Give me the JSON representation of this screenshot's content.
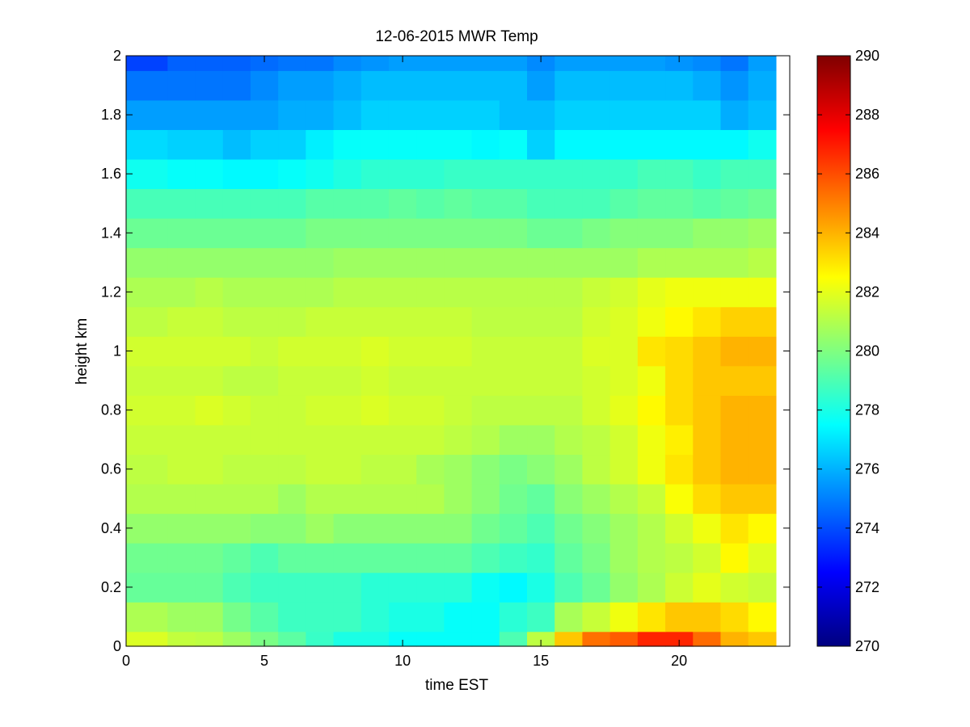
{
  "chart_data": {
    "type": "heatmap",
    "title": "12-06-2015 MWR Temp",
    "xlabel": "time EST",
    "ylabel": "height km",
    "xlim": [
      0,
      24
    ],
    "ylim": [
      0,
      2
    ],
    "xticks": [
      0,
      5,
      10,
      15,
      20
    ],
    "yticks": [
      0,
      0.2,
      0.4,
      0.6,
      0.8,
      1,
      1.2,
      1.4,
      1.6,
      1.8,
      2
    ],
    "x_edges": [
      0,
      1.5,
      2.5,
      3.5,
      4.5,
      5.5,
      6.5,
      7.5,
      8.5,
      9.5,
      10.5,
      11.5,
      12.5,
      13.5,
      14.5,
      15.5,
      16.5,
      17.5,
      18.5,
      19.5,
      20.5,
      21.5,
      22.5,
      23.5
    ],
    "y_edges": [
      0,
      0.05,
      0.15,
      0.25,
      0.35,
      0.45,
      0.55,
      0.65,
      0.75,
      0.85,
      0.95,
      1.05,
      1.15,
      1.25,
      1.35,
      1.45,
      1.55,
      1.65,
      1.75,
      1.85,
      1.95,
      2.0
    ],
    "colorbar": {
      "min": 270,
      "max": 290,
      "ticks": [
        270,
        272,
        274,
        276,
        278,
        280,
        282,
        284,
        286,
        288,
        290
      ],
      "colormap": "jet"
    },
    "values": [
      [
        281.8,
        281.3,
        281.2,
        280.6,
        279.9,
        279.3,
        278.6,
        278.0,
        278.0,
        277.6,
        277.6,
        277.6,
        277.6,
        279.0,
        281.2,
        283.6,
        285.3,
        285.7,
        286.8,
        286.8,
        285.4,
        284.0,
        283.6
      ],
      [
        280.9,
        280.6,
        280.6,
        279.8,
        279.2,
        278.7,
        278.7,
        278.7,
        278.3,
        278.0,
        278.0,
        277.6,
        277.6,
        278.3,
        278.7,
        280.8,
        281.4,
        282.2,
        283.0,
        283.6,
        283.6,
        283.2,
        282.6
      ],
      [
        279.5,
        279.5,
        279.5,
        279.0,
        278.7,
        278.7,
        278.7,
        278.7,
        278.3,
        278.3,
        278.3,
        278.3,
        277.7,
        277.4,
        278.0,
        279.0,
        279.6,
        280.4,
        280.9,
        281.5,
        282.0,
        281.6,
        281.4
      ],
      [
        279.7,
        279.7,
        279.7,
        279.4,
        279.0,
        279.4,
        279.4,
        279.4,
        279.4,
        279.4,
        279.4,
        279.4,
        279.0,
        278.7,
        278.5,
        279.4,
        279.9,
        280.6,
        281.0,
        281.2,
        281.6,
        282.6,
        281.9
      ],
      [
        280.4,
        280.4,
        280.4,
        280.4,
        280.2,
        280.2,
        280.6,
        280.2,
        280.2,
        280.2,
        280.2,
        280.2,
        279.7,
        279.4,
        279.0,
        279.7,
        280.1,
        280.6,
        281.0,
        281.6,
        282.2,
        283.0,
        282.6
      ],
      [
        281.0,
        281.0,
        281.0,
        281.0,
        281.0,
        280.6,
        281.0,
        281.0,
        281.0,
        281.0,
        281.0,
        280.6,
        280.2,
        279.7,
        279.4,
        280.2,
        280.6,
        281.0,
        281.4,
        282.4,
        283.2,
        283.6,
        283.6
      ],
      [
        281.2,
        281.4,
        281.4,
        281.2,
        281.2,
        281.2,
        281.4,
        281.4,
        281.2,
        281.2,
        280.8,
        280.6,
        280.2,
        279.9,
        280.2,
        280.6,
        281.2,
        281.6,
        282.2,
        283.0,
        283.6,
        284.0,
        284.0
      ],
      [
        281.4,
        281.4,
        281.4,
        281.4,
        281.4,
        281.4,
        281.4,
        281.4,
        281.4,
        281.4,
        281.4,
        281.2,
        281.0,
        280.6,
        280.6,
        281.0,
        281.2,
        281.6,
        282.2,
        282.8,
        283.6,
        284.0,
        284.0
      ],
      [
        281.6,
        281.6,
        281.8,
        281.6,
        281.4,
        281.4,
        281.6,
        281.6,
        281.8,
        281.6,
        281.6,
        281.4,
        281.2,
        281.2,
        281.2,
        281.2,
        281.6,
        282.0,
        282.6,
        283.2,
        283.6,
        284.0,
        284.0
      ],
      [
        281.4,
        281.4,
        281.4,
        281.2,
        281.2,
        281.4,
        281.4,
        281.4,
        281.6,
        281.4,
        281.4,
        281.4,
        281.4,
        281.4,
        281.4,
        281.4,
        281.6,
        281.8,
        282.2,
        283.2,
        283.6,
        283.6,
        283.6
      ],
      [
        281.6,
        281.6,
        281.6,
        281.6,
        281.4,
        281.6,
        281.6,
        281.6,
        281.8,
        281.6,
        281.6,
        281.6,
        281.4,
        281.4,
        281.4,
        281.4,
        281.8,
        281.8,
        283.0,
        283.2,
        283.6,
        284.0,
        284.0
      ],
      [
        281.2,
        281.4,
        281.4,
        281.2,
        281.2,
        281.2,
        281.4,
        281.4,
        281.4,
        281.4,
        281.4,
        281.4,
        281.2,
        281.2,
        281.2,
        281.2,
        281.6,
        281.8,
        282.2,
        282.6,
        283.0,
        283.4,
        283.4
      ],
      [
        280.9,
        280.9,
        281.1,
        280.9,
        280.9,
        280.9,
        280.9,
        281.1,
        281.1,
        281.1,
        281.1,
        281.1,
        281.1,
        281.1,
        281.1,
        281.1,
        281.4,
        281.6,
        282.0,
        282.2,
        282.2,
        282.2,
        282.2
      ],
      [
        280.4,
        280.4,
        280.4,
        280.4,
        280.4,
        280.4,
        280.4,
        280.6,
        280.6,
        280.6,
        280.6,
        280.6,
        280.6,
        280.6,
        280.6,
        280.6,
        280.6,
        280.6,
        280.9,
        280.9,
        280.9,
        280.9,
        281.1
      ],
      [
        279.6,
        279.6,
        279.6,
        279.6,
        279.6,
        279.6,
        279.9,
        279.9,
        279.9,
        279.9,
        279.9,
        279.9,
        279.9,
        279.9,
        279.6,
        279.6,
        279.9,
        280.1,
        280.1,
        280.1,
        280.4,
        280.4,
        280.6
      ],
      [
        278.9,
        278.9,
        278.9,
        278.9,
        278.9,
        278.9,
        279.2,
        279.2,
        279.2,
        279.4,
        279.2,
        279.4,
        279.2,
        279.2,
        278.9,
        278.9,
        278.9,
        279.2,
        279.4,
        279.4,
        279.2,
        279.4,
        279.6
      ],
      [
        277.8,
        277.6,
        277.6,
        277.4,
        277.4,
        277.6,
        277.8,
        278.1,
        278.4,
        278.4,
        278.4,
        278.6,
        278.6,
        278.6,
        278.6,
        278.6,
        278.6,
        278.6,
        278.9,
        278.9,
        278.6,
        278.9,
        278.9
      ],
      [
        276.8,
        276.6,
        276.6,
        276.2,
        276.6,
        276.6,
        277.2,
        277.6,
        277.6,
        277.6,
        277.6,
        277.6,
        277.4,
        277.6,
        276.6,
        277.4,
        277.4,
        277.4,
        277.4,
        277.4,
        277.4,
        277.4,
        277.8
      ],
      [
        275.6,
        275.6,
        275.6,
        275.6,
        275.6,
        275.9,
        275.9,
        276.2,
        276.6,
        276.6,
        276.6,
        276.6,
        276.6,
        276.2,
        276.2,
        276.6,
        276.6,
        276.6,
        276.6,
        276.6,
        276.6,
        275.9,
        276.2
      ],
      [
        274.8,
        274.8,
        274.8,
        274.8,
        275.2,
        275.6,
        275.6,
        275.9,
        276.2,
        276.2,
        276.2,
        276.2,
        276.2,
        276.2,
        275.6,
        276.2,
        276.2,
        276.2,
        276.2,
        276.2,
        275.9,
        275.4,
        275.9
      ],
      [
        273.8,
        274.4,
        274.4,
        274.4,
        274.6,
        274.8,
        274.8,
        275.2,
        275.4,
        275.6,
        275.6,
        275.6,
        275.6,
        275.6,
        275.2,
        275.6,
        275.6,
        275.6,
        275.6,
        275.4,
        275.2,
        274.8,
        275.6
      ]
    ]
  }
}
